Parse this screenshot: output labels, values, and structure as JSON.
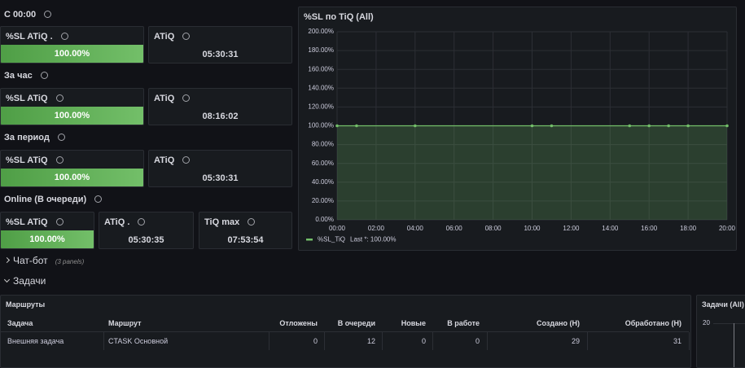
{
  "sections": [
    {
      "title": "C 00:00",
      "stats": [
        {
          "title": "%SL ATiQ .",
          "value": "100.00%"
        },
        {
          "title": "ATiQ",
          "value": "05:30:31"
        }
      ]
    },
    {
      "title": "За час",
      "stats": [
        {
          "title": "%SL ATiQ",
          "value": "100.00%"
        },
        {
          "title": "ATiQ",
          "value": "08:16:02"
        }
      ]
    },
    {
      "title": "За период",
      "stats": [
        {
          "title": "%SL ATiQ",
          "value": "100.00%"
        },
        {
          "title": "ATiQ",
          "value": "05:30:31"
        }
      ]
    },
    {
      "title": "Online (В очереди)",
      "stats": [
        {
          "title": "%SL ATiQ",
          "value": "100.00%"
        },
        {
          "title": "ATiQ .",
          "value": "05:30:35"
        },
        {
          "title": "TiQ max",
          "value": "07:53:54"
        }
      ]
    }
  ],
  "chart_data": {
    "type": "line",
    "title": "%SL по TiQ (All)",
    "x": [
      0,
      1,
      4,
      10,
      11,
      15,
      16,
      17,
      18,
      20
    ],
    "series": [
      {
        "name": "%SL_TiQ",
        "color": "#73bf69",
        "values": [
          100,
          100,
          100,
          100,
          100,
          100,
          100,
          100,
          100,
          100
        ]
      }
    ],
    "legend_suffix": "Last *: 100.00%",
    "xlim": [
      0,
      20
    ],
    "xticks": [
      {
        "value": 0,
        "label": "00:00"
      },
      {
        "value": 2,
        "label": "02:00"
      },
      {
        "value": 4,
        "label": "04:00"
      },
      {
        "value": 6,
        "label": "06:00"
      },
      {
        "value": 8,
        "label": "08:00"
      },
      {
        "value": 10,
        "label": "10:00"
      },
      {
        "value": 12,
        "label": "12:00"
      },
      {
        "value": 14,
        "label": "14:00"
      },
      {
        "value": 16,
        "label": "16:00"
      },
      {
        "value": 18,
        "label": "18:00"
      },
      {
        "value": 20,
        "label": "20:00"
      }
    ],
    "ylim": [
      0,
      200
    ],
    "yticks": [
      {
        "value": 0,
        "label": "0.00%"
      },
      {
        "value": 20,
        "label": "20.00%"
      },
      {
        "value": 40,
        "label": "40.00%"
      },
      {
        "value": 60,
        "label": "60.00%"
      },
      {
        "value": 80,
        "label": "80.00%"
      },
      {
        "value": 100,
        "label": "100.00%"
      },
      {
        "value": 120,
        "label": "120.00%"
      },
      {
        "value": 140,
        "label": "140.00%"
      },
      {
        "value": 160,
        "label": "160.00%"
      },
      {
        "value": 180,
        "label": "180.00%"
      },
      {
        "value": 200,
        "label": "200.00%"
      }
    ],
    "grid": true
  },
  "rows": [
    {
      "title": "Чат-бот",
      "note": "(3 panels)"
    },
    {
      "title": "Задачи"
    }
  ],
  "table": {
    "title": "Маршруты",
    "columns": [
      "Задача",
      "Маршрут",
      "Отложены",
      "В очереди",
      "Новые",
      "В работе",
      "Создано (Н)",
      "Обработано (Н)"
    ],
    "rows": [
      [
        "Внешняя задача",
        "CTASK Основной",
        0,
        12,
        0,
        0,
        29,
        31
      ]
    ]
  },
  "side_panel": {
    "title": "Задачи (All)",
    "ytick": 20
  }
}
